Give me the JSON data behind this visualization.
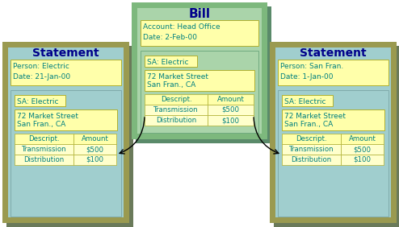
{
  "bg_color": "#ffffff",
  "bill_outer_color": "#7db87d",
  "bill_inner_color": "#aad4aa",
  "bill_shadow_color": "#5a8a6a",
  "statement_outer_color": "#9a9a50",
  "statement_inner_color": "#a0cece",
  "statement_shadow_color": "#6a7a5a",
  "yellow_box_color": "#ffffaa",
  "yellow_box_edge": "#b0b030",
  "table_row_color": "#ffffcc",
  "title_color": "#00008b",
  "text_color": "#008080",
  "arrow_color": "#000000",
  "bill_title": "Bill",
  "bill_fields": [
    "Account: Head Office",
    "Date: 2-Feb-00"
  ],
  "bill_sa": "SA: Electric",
  "bill_address": "72 Market Street\nSan Fran., CA",
  "bill_table_headers": [
    "Descript.",
    "Amount"
  ],
  "bill_table_rows": [
    [
      "Transmission",
      "$500"
    ],
    [
      "Distribution",
      "$100"
    ]
  ],
  "left_title": "Statement",
  "left_fields": [
    "Person: Electric",
    "Date: 21-Jan-00"
  ],
  "left_sa": "SA: Electric",
  "left_address": "72 Market Street\nSan Fran., CA",
  "left_table_headers": [
    "Descript.",
    "Amount"
  ],
  "left_table_rows": [
    [
      "Transmission",
      "$500"
    ],
    [
      "Distribution",
      "$100"
    ]
  ],
  "right_title": "Statement",
  "right_fields": [
    "Person: San Fran.",
    "Date: 1-Jan-00"
  ],
  "right_sa": "SA: Electric",
  "right_address": "72 Market Street\nSan Fran., CA",
  "right_table_headers": [
    "Descript.",
    "Amount"
  ],
  "right_table_rows": [
    [
      "Transmission",
      "$500"
    ],
    [
      "Distribution",
      "$100"
    ]
  ]
}
